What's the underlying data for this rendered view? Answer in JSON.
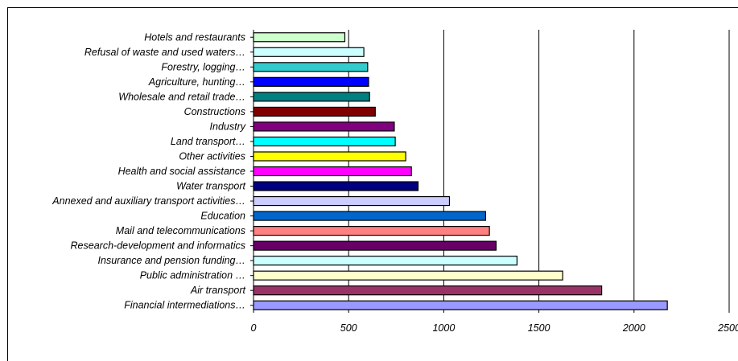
{
  "chart_data": {
    "type": "bar",
    "orientation": "horizontal",
    "title": "",
    "xlabel": "",
    "ylabel": "",
    "xlim": [
      0,
      2500
    ],
    "x_ticks": [
      0,
      500,
      1000,
      1500,
      2000,
      2500
    ],
    "x_tick_labels": [
      "0",
      "500",
      "1000",
      "1500",
      "2000",
      "2500"
    ],
    "grid": "vertical major gridlines",
    "legend": "none",
    "categories": [
      "Hotels and restaurants",
      "Refusal of waste and used waters…",
      "Forestry, logging…",
      "Agriculture, hunting…",
      "Wholesale and retail trade…",
      "Constructions",
      "Industry",
      "Land transport…",
      "Other activities",
      "Health and social assistance",
      "Water transport",
      "Annexed and auxiliary transport activities…",
      "Education",
      "Mail and telecommunications",
      "Research-development and informatics",
      "Insurance and pension funding…",
      "Public administration …",
      "Air transport",
      "Financial intermediations…"
    ],
    "values": [
      480,
      580,
      600,
      605,
      610,
      640,
      740,
      745,
      800,
      830,
      865,
      1030,
      1220,
      1240,
      1275,
      1385,
      1625,
      1830,
      2175
    ],
    "colors": [
      "#CCFFCC",
      "#CCFFFF",
      "#33CCCC",
      "#0000FF",
      "#008080",
      "#800000",
      "#800080",
      "#00FFFF",
      "#FFFF00",
      "#FF00FF",
      "#000080",
      "#CCCCFF",
      "#0066CC",
      "#FF8080",
      "#660066",
      "#CCFFFF",
      "#FFFFCC",
      "#993366",
      "#9999FF"
    ]
  }
}
